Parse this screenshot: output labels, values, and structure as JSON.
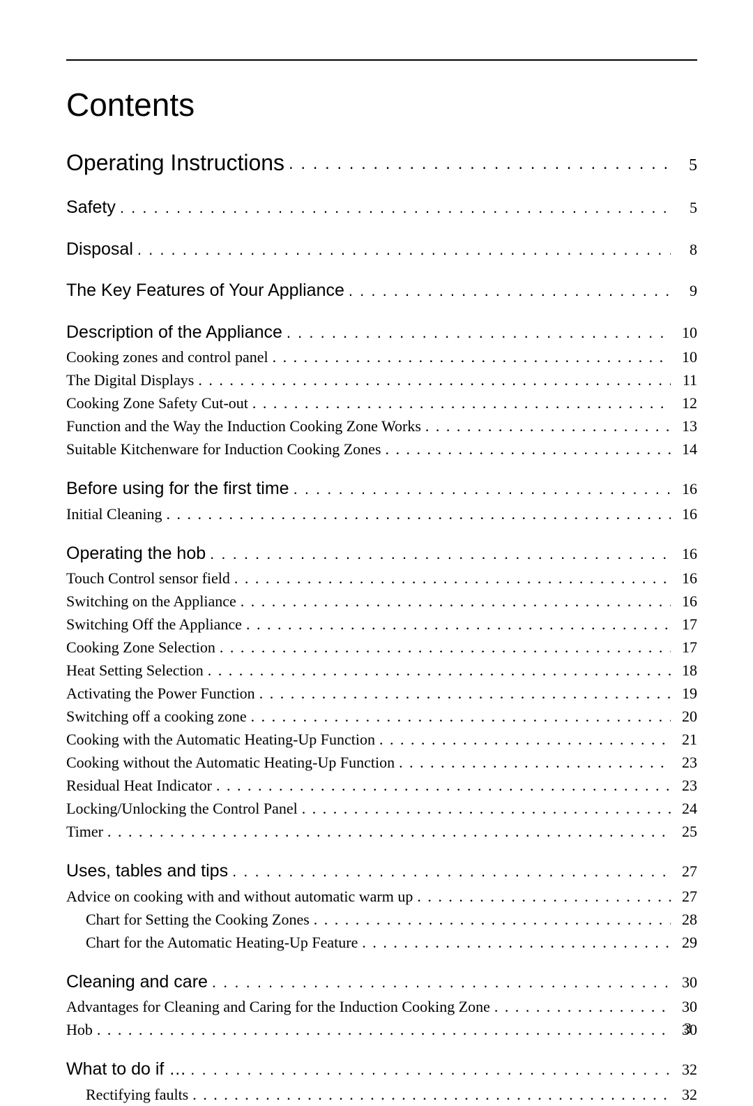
{
  "title": "Contents",
  "page_number": "3",
  "sections": [
    {
      "rows": [
        {
          "level": 0,
          "indent": 0,
          "label": "Operating Instructions",
          "page": "5"
        }
      ]
    },
    {
      "rows": [
        {
          "level": 1,
          "indent": 0,
          "label": "Safety",
          "page": "5"
        }
      ]
    },
    {
      "rows": [
        {
          "level": 1,
          "indent": 0,
          "label": "Disposal",
          "page": "8"
        }
      ]
    },
    {
      "rows": [
        {
          "level": 1,
          "indent": 0,
          "label": "The Key Features of Your Appliance",
          "page": "9"
        }
      ]
    },
    {
      "rows": [
        {
          "level": 1,
          "indent": 0,
          "label": "Description of the Appliance",
          "page": "10"
        },
        {
          "level": 2,
          "indent": 0,
          "label": "Cooking zones and control panel",
          "page": "10"
        },
        {
          "level": 2,
          "indent": 0,
          "label": "The Digital Displays",
          "page": "11"
        },
        {
          "level": 2,
          "indent": 0,
          "label": "Cooking Zone Safety Cut-out",
          "page": "12"
        },
        {
          "level": 2,
          "indent": 0,
          "label": "Function and the Way the Induction Cooking Zone Works",
          "page": "13"
        },
        {
          "level": 2,
          "indent": 0,
          "label": "Suitable Kitchenware for Induction Cooking Zones",
          "page": "14"
        }
      ]
    },
    {
      "rows": [
        {
          "level": 1,
          "indent": 0,
          "label": "Before using for the first time",
          "page": "16"
        },
        {
          "level": 2,
          "indent": 0,
          "label": "Initial Cleaning",
          "page": "16"
        }
      ]
    },
    {
      "rows": [
        {
          "level": 1,
          "indent": 0,
          "label": "Operating the hob",
          "page": "16"
        },
        {
          "level": 2,
          "indent": 0,
          "label": "Touch Control sensor field",
          "page": "16"
        },
        {
          "level": 2,
          "indent": 0,
          "label": "Switching on the Appliance",
          "page": "16"
        },
        {
          "level": 2,
          "indent": 0,
          "label": "Switching Off the Appliance",
          "page": "17"
        },
        {
          "level": 2,
          "indent": 0,
          "label": "Cooking Zone Selection",
          "page": "17"
        },
        {
          "level": 2,
          "indent": 0,
          "label": "Heat Setting Selection",
          "page": "18"
        },
        {
          "level": 2,
          "indent": 0,
          "label": "Activating the Power Function",
          "page": "19"
        },
        {
          "level": 2,
          "indent": 0,
          "label": "Switching off a cooking zone",
          "page": "20"
        },
        {
          "level": 2,
          "indent": 0,
          "label": "Cooking with the Automatic Heating-Up Function",
          "page": "21"
        },
        {
          "level": 2,
          "indent": 0,
          "label": "Cooking without the Automatic Heating-Up Function",
          "page": "23"
        },
        {
          "level": 2,
          "indent": 0,
          "label": "Residual Heat Indicator",
          "page": "23"
        },
        {
          "level": 2,
          "indent": 0,
          "label": "Locking/Unlocking the Control Panel",
          "page": "24"
        },
        {
          "level": 2,
          "indent": 0,
          "label": "Timer",
          "page": "25"
        }
      ]
    },
    {
      "rows": [
        {
          "level": 1,
          "indent": 0,
          "label": "Uses, tables and tips",
          "page": "27"
        },
        {
          "level": 2,
          "indent": 0,
          "label": "Advice on cooking with and without automatic warm up",
          "page": "27"
        },
        {
          "level": 2,
          "indent": 1,
          "label": "Chart for Setting the Cooking Zones",
          "page": "28"
        },
        {
          "level": 2,
          "indent": 1,
          "label": "Chart for the Automatic Heating-Up Feature",
          "page": "29"
        }
      ]
    },
    {
      "rows": [
        {
          "level": 1,
          "indent": 0,
          "label": "Cleaning and care",
          "page": "30"
        },
        {
          "level": 2,
          "indent": 0,
          "label": "Advantages for Cleaning and Caring for the Induction Cooking Zone",
          "page": "30"
        },
        {
          "level": 2,
          "indent": 0,
          "label": "Hob",
          "page": "30"
        }
      ]
    },
    {
      "rows": [
        {
          "level": 1,
          "indent": 0,
          "label": "What to do if …",
          "page": "32"
        },
        {
          "level": 2,
          "indent": 1,
          "label": "Rectifying faults",
          "page": "32"
        }
      ]
    }
  ]
}
